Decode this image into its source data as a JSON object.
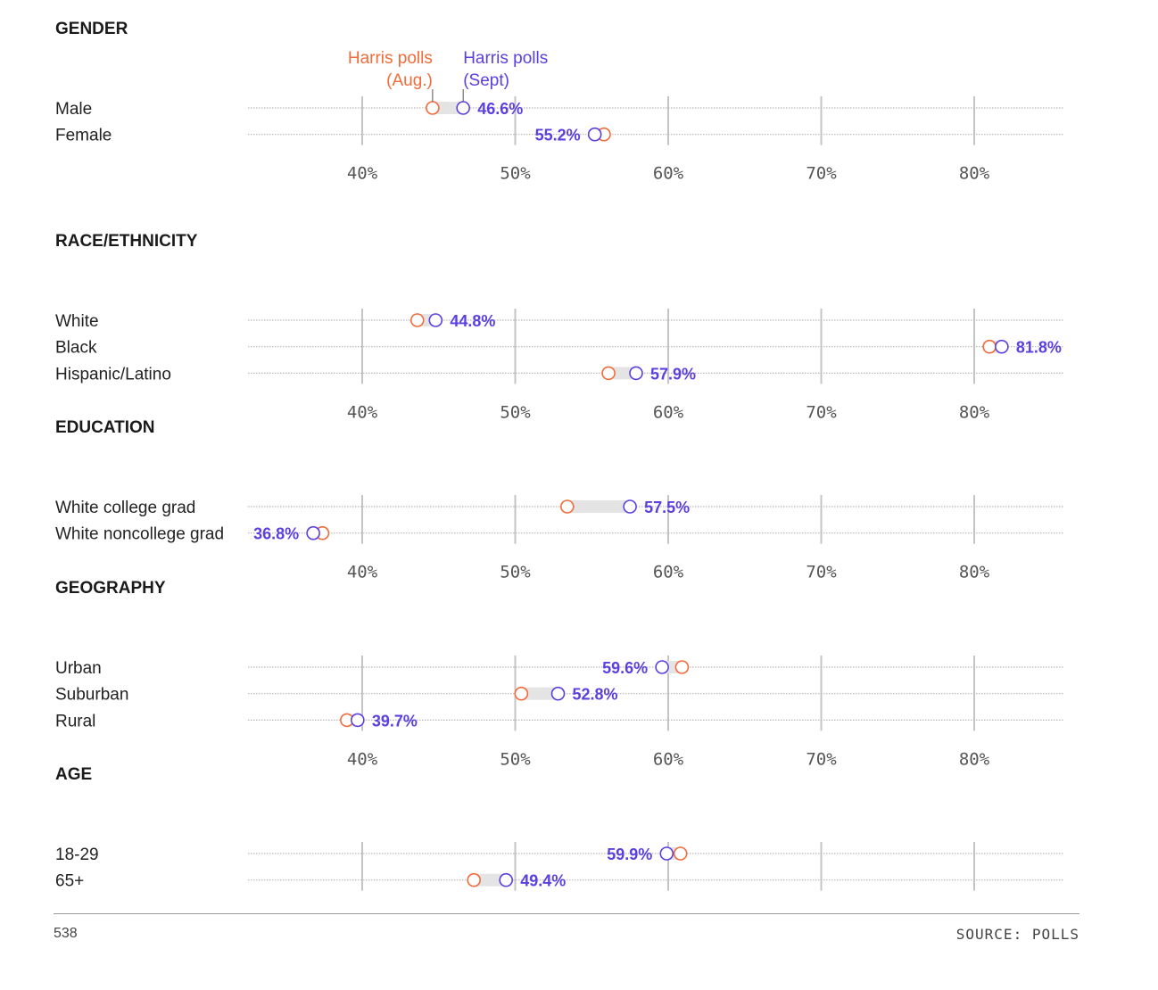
{
  "colors": {
    "aug": "#f26b3a",
    "sept": "#5c3fe0",
    "grid": "#c4c4c4",
    "band": "#e4e4e4"
  },
  "legend": {
    "aug_line1": "Harris polls",
    "aug_line2": "(Aug.)",
    "sept_line1": "Harris polls",
    "sept_line2": "(Sept)"
  },
  "chart_data": {
    "type": "dot-plot",
    "xlim": [
      32.5,
      86
    ],
    "ticks": [
      40,
      50,
      60,
      70,
      80
    ],
    "tick_labels": [
      "40%",
      "50%",
      "60%",
      "70%",
      "80%"
    ],
    "series": [
      {
        "name": "Harris polls (Aug.)"
      },
      {
        "name": "Harris polls (Sept)"
      }
    ],
    "sections": [
      {
        "title": "GENDER",
        "rows": [
          {
            "label": "Male",
            "aug": 44.6,
            "sept": 46.6,
            "value_label": "46.6%"
          },
          {
            "label": "Female",
            "aug": 55.8,
            "sept": 55.2,
            "value_label": "55.2%"
          }
        ]
      },
      {
        "title": "RACE/ETHNICITY",
        "rows": [
          {
            "label": "White",
            "aug": 43.6,
            "sept": 44.8,
            "value_label": "44.8%"
          },
          {
            "label": "Black",
            "aug": 81.0,
            "sept": 81.8,
            "value_label": "81.8%"
          },
          {
            "label": "Hispanic/Latino",
            "aug": 56.1,
            "sept": 57.9,
            "value_label": "57.9%"
          }
        ]
      },
      {
        "title": "EDUCATION",
        "rows": [
          {
            "label": "White college grad",
            "aug": 53.4,
            "sept": 57.5,
            "value_label": "57.5%"
          },
          {
            "label": "White noncollege grad",
            "aug": 37.4,
            "sept": 36.8,
            "value_label": "36.8%"
          }
        ]
      },
      {
        "title": "GEOGRAPHY",
        "rows": [
          {
            "label": "Urban",
            "aug": 60.9,
            "sept": 59.6,
            "value_label": "59.6%"
          },
          {
            "label": "Suburban",
            "aug": 50.4,
            "sept": 52.8,
            "value_label": "52.8%"
          },
          {
            "label": "Rural",
            "aug": 39.0,
            "sept": 39.7,
            "value_label": "39.7%"
          }
        ]
      },
      {
        "title": "AGE",
        "rows": [
          {
            "label": "18-29",
            "aug": 60.8,
            "sept": 59.9,
            "value_label": "59.9%"
          },
          {
            "label": "65+",
            "aug": 47.3,
            "sept": 49.4,
            "value_label": "49.4%"
          }
        ]
      }
    ]
  },
  "footer": {
    "left": "538",
    "right": "SOURCE: POLLS"
  }
}
